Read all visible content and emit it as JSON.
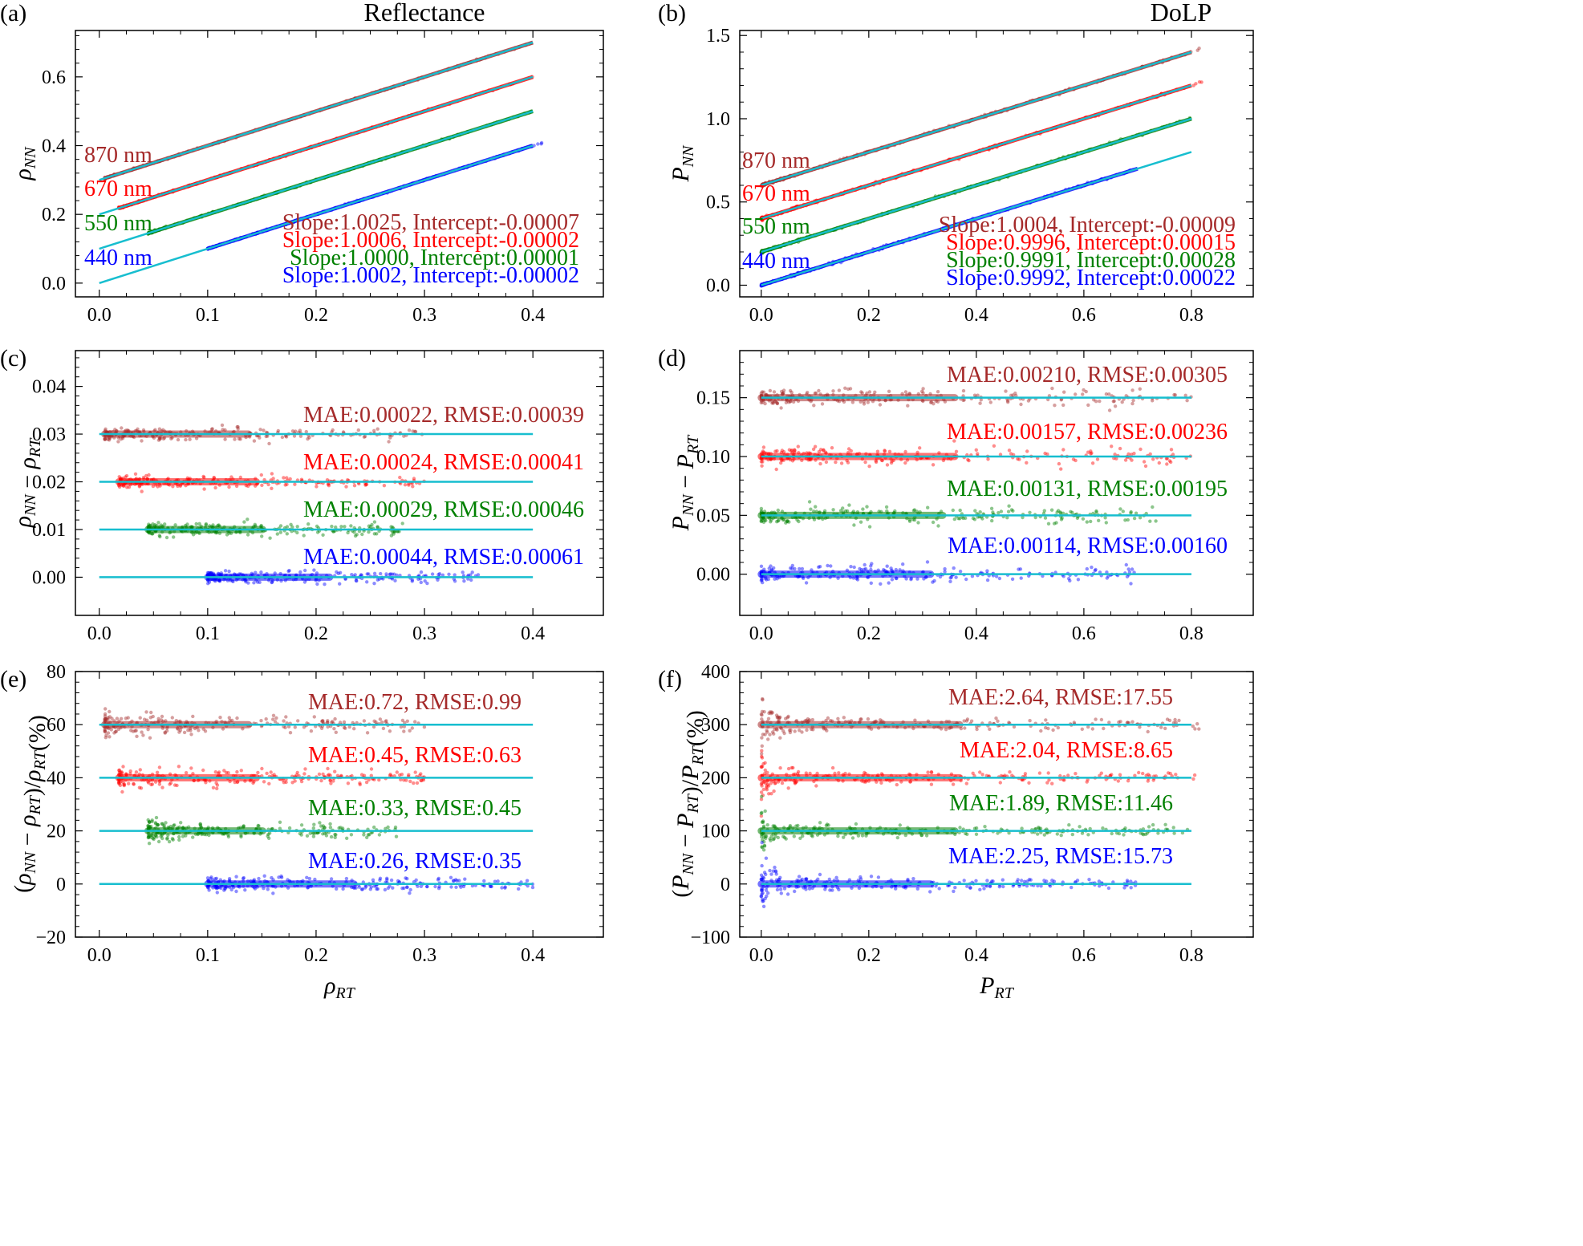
{
  "figure": {
    "column_titles": [
      "Reflectance",
      "DoLP"
    ]
  },
  "series_style": {
    "colors": {
      "870": "#a52a2a",
      "670": "#ff0000",
      "550": "#008000",
      "440": "#0000ff"
    },
    "fit_line_color": "#17becf"
  },
  "chart_data": [
    {
      "panel": "(a)",
      "type": "scatter",
      "title": "Reflectance",
      "xlabel": "",
      "ylabel": "ρ_NN",
      "xlim": [
        -0.022,
        0.465
      ],
      "ylim": [
        -0.04,
        0.735
      ],
      "xticks": [
        0.0,
        0.1,
        0.2,
        0.3,
        0.4
      ],
      "xticklabels": [
        "0.0",
        "0.1",
        "0.2",
        "0.3",
        "0.4"
      ],
      "yticks": [
        0.0,
        0.2,
        0.4,
        0.6
      ],
      "yticklabels": [
        "0.0",
        "0.2",
        "0.4",
        "0.6"
      ],
      "series": [
        {
          "name": "870 nm",
          "offset": 0.3,
          "x_start": 0.005,
          "x_end": 0.4,
          "line_start": 0.0,
          "line_end": 0.4,
          "slope": 1.0025,
          "intercept": -7e-05
        },
        {
          "name": "670 nm",
          "offset": 0.2,
          "x_start": 0.018,
          "x_end": 0.4,
          "line_start": 0.0,
          "line_end": 0.4,
          "slope": 1.0006,
          "intercept": -2e-05
        },
        {
          "name": "550 nm",
          "offset": 0.1,
          "x_start": 0.045,
          "x_end": 0.4,
          "line_start": 0.0,
          "line_end": 0.4,
          "slope": 1.0,
          "intercept": 1e-05
        },
        {
          "name": "440 nm",
          "offset": 0.0,
          "x_start": 0.1,
          "x_end": 0.41,
          "line_start": 0.0,
          "line_end": 0.4,
          "slope": 1.0002,
          "intercept": -2e-05
        }
      ],
      "series_labels": [
        "870 nm",
        "670 nm",
        "550 nm",
        "440 nm"
      ],
      "annotations": [
        "Slope:1.0025, Intercept:-0.00007",
        "Slope:1.0006, Intercept:-0.00002",
        "Slope:1.0000, Intercept:0.00001",
        "Slope:1.0002, Intercept:-0.00002"
      ]
    },
    {
      "panel": "(b)",
      "type": "scatter",
      "title": "DoLP",
      "xlabel": "",
      "ylabel": "P_NN",
      "xlim": [
        -0.04,
        0.915
      ],
      "ylim": [
        -0.07,
        1.53
      ],
      "xticks": [
        0.0,
        0.2,
        0.4,
        0.6,
        0.8
      ],
      "xticklabels": [
        "0.0",
        "0.2",
        "0.4",
        "0.6",
        "0.8"
      ],
      "yticks": [
        0.0,
        0.5,
        1.0,
        1.5
      ],
      "yticklabels": [
        "0.0",
        "0.5",
        "1.0",
        "1.5"
      ],
      "series": [
        {
          "name": "870 nm",
          "offset": 0.6,
          "x_start": 0.0,
          "x_end": 0.82,
          "line_start": 0.0,
          "line_end": 0.8,
          "slope": 1.0004,
          "intercept": -9e-05
        },
        {
          "name": "670 nm",
          "offset": 0.4,
          "x_start": 0.0,
          "x_end": 0.82,
          "line_start": 0.0,
          "line_end": 0.8,
          "slope": 0.9996,
          "intercept": 0.00015
        },
        {
          "name": "550 nm",
          "offset": 0.2,
          "x_start": 0.0,
          "x_end": 0.8,
          "line_start": 0.0,
          "line_end": 0.8,
          "slope": 0.9991,
          "intercept": 0.00028
        },
        {
          "name": "440 nm",
          "offset": 0.0,
          "x_start": 0.0,
          "x_end": 0.7,
          "line_start": 0.0,
          "line_end": 0.8,
          "slope": 0.9992,
          "intercept": 0.00022
        }
      ],
      "series_labels": [
        "870 nm",
        "670 nm",
        "550 nm",
        "440 nm"
      ],
      "annotations": [
        "Slope:1.0004, Intercept:-0.00009",
        "Slope:0.9996, Intercept:0.00015",
        "Slope:0.9991, Intercept:0.00028",
        "Slope:0.9992, Intercept:0.00022"
      ]
    },
    {
      "panel": "(c)",
      "type": "scatter",
      "xlabel": "",
      "ylabel": "ρ_NN − ρ_RT",
      "xlim": [
        -0.022,
        0.465
      ],
      "ylim": [
        -0.008,
        0.0475
      ],
      "xticks": [
        0.0,
        0.1,
        0.2,
        0.3,
        0.4
      ],
      "xticklabels": [
        "0.0",
        "0.1",
        "0.2",
        "0.3",
        "0.4"
      ],
      "yticks": [
        0.0,
        0.01,
        0.02,
        0.03,
        0.04
      ],
      "yticklabels": [
        "0.00",
        "0.01",
        "0.02",
        "0.03",
        "0.04"
      ],
      "series": [
        {
          "name": "870 nm",
          "offset": 0.03,
          "x_start": 0.005,
          "x_end": 0.3,
          "line_start": 0.0,
          "line_end": 0.4
        },
        {
          "name": "670 nm",
          "offset": 0.02,
          "x_start": 0.018,
          "x_end": 0.3,
          "line_start": 0.0,
          "line_end": 0.4
        },
        {
          "name": "550 nm",
          "offset": 0.01,
          "x_start": 0.045,
          "x_end": 0.28,
          "line_start": 0.0,
          "line_end": 0.4
        },
        {
          "name": "440 nm",
          "offset": 0.0,
          "x_start": 0.1,
          "x_end": 0.35,
          "line_start": 0.0,
          "line_end": 0.4
        }
      ],
      "annotations": [
        "MAE:0.00022, RMSE:0.00039",
        "MAE:0.00024, RMSE:0.00041",
        "MAE:0.00029, RMSE:0.00046",
        "MAE:0.00044, RMSE:0.00061"
      ]
    },
    {
      "panel": "(d)",
      "type": "scatter",
      "xlabel": "",
      "ylabel": "P_NN − P_RT",
      "xlim": [
        -0.04,
        0.915
      ],
      "ylim": [
        -0.035,
        0.19
      ],
      "xticks": [
        0.0,
        0.2,
        0.4,
        0.6,
        0.8
      ],
      "xticklabels": [
        "0.0",
        "0.2",
        "0.4",
        "0.6",
        "0.8"
      ],
      "yticks": [
        0.0,
        0.05,
        0.1,
        0.15
      ],
      "yticklabels": [
        "0.00",
        "0.05",
        "0.10",
        "0.15"
      ],
      "series": [
        {
          "name": "870 nm",
          "offset": 0.15,
          "x_start": 0.0,
          "x_end": 0.8,
          "line_start": 0.0,
          "line_end": 0.8
        },
        {
          "name": "670 nm",
          "offset": 0.1,
          "x_start": 0.0,
          "x_end": 0.8,
          "line_start": 0.0,
          "line_end": 0.8
        },
        {
          "name": "550 nm",
          "offset": 0.05,
          "x_start": 0.0,
          "x_end": 0.75,
          "line_start": 0.0,
          "line_end": 0.8
        },
        {
          "name": "440 nm",
          "offset": 0.0,
          "x_start": 0.0,
          "x_end": 0.7,
          "line_start": 0.0,
          "line_end": 0.8
        }
      ],
      "annotations": [
        "MAE:0.00210, RMSE:0.00305",
        "MAE:0.00157, RMSE:0.00236",
        "MAE:0.00131, RMSE:0.00195",
        "MAE:0.00114, RMSE:0.00160"
      ]
    },
    {
      "panel": "(e)",
      "type": "scatter",
      "xlabel": "ρ_RT",
      "ylabel": "(ρ_NN − ρ_RT)/ρ_RT(%)",
      "xlim": [
        -0.022,
        0.465
      ],
      "ylim": [
        -20,
        80
      ],
      "xticks": [
        0.0,
        0.1,
        0.2,
        0.3,
        0.4
      ],
      "xticklabels": [
        "0.0",
        "0.1",
        "0.2",
        "0.3",
        "0.4"
      ],
      "yticks": [
        -20,
        0,
        20,
        40,
        60,
        80
      ],
      "yticklabels": [
        "−20",
        "0",
        "20",
        "40",
        "60",
        "80"
      ],
      "series": [
        {
          "name": "870 nm",
          "offset": 60,
          "x_start": 0.005,
          "x_end": 0.3,
          "line_start": 0.0,
          "line_end": 0.4
        },
        {
          "name": "670 nm",
          "offset": 40,
          "x_start": 0.018,
          "x_end": 0.3,
          "line_start": 0.0,
          "line_end": 0.4
        },
        {
          "name": "550 nm",
          "offset": 20,
          "x_start": 0.045,
          "x_end": 0.28,
          "line_start": 0.0,
          "line_end": 0.4
        },
        {
          "name": "440 nm",
          "offset": 0,
          "x_start": 0.1,
          "x_end": 0.4,
          "line_start": 0.0,
          "line_end": 0.4
        }
      ],
      "annotations": [
        "MAE:0.72, RMSE:0.99",
        "MAE:0.45, RMSE:0.63",
        "MAE:0.33, RMSE:0.45",
        "MAE:0.26, RMSE:0.35"
      ]
    },
    {
      "panel": "(f)",
      "type": "scatter",
      "xlabel": "P_RT",
      "ylabel": "(P_NN − P_RT)/P_RT(%)",
      "xlim": [
        -0.04,
        0.915
      ],
      "ylim": [
        -100,
        400
      ],
      "xticks": [
        0.0,
        0.2,
        0.4,
        0.6,
        0.8
      ],
      "xticklabels": [
        "0.0",
        "0.2",
        "0.4",
        "0.6",
        "0.8"
      ],
      "yticks": [
        -100,
        0,
        100,
        200,
        300,
        400
      ],
      "yticklabels": [
        "−100",
        "0",
        "100",
        "200",
        "300",
        "400"
      ],
      "series": [
        {
          "name": "870 nm",
          "offset": 300,
          "x_start": 0.0,
          "x_end": 0.82,
          "line_start": 0.0,
          "line_end": 0.8
        },
        {
          "name": "670 nm",
          "offset": 200,
          "x_start": 0.0,
          "x_end": 0.82,
          "line_start": 0.0,
          "line_end": 0.8
        },
        {
          "name": "550 nm",
          "offset": 100,
          "x_start": 0.0,
          "x_end": 0.8,
          "line_start": 0.0,
          "line_end": 0.8
        },
        {
          "name": "440 nm",
          "offset": 0,
          "x_start": 0.0,
          "x_end": 0.7,
          "line_start": 0.0,
          "line_end": 0.8
        }
      ],
      "annotations": [
        "MAE:2.64, RMSE:17.55",
        "MAE:2.04, RMSE:8.65",
        "MAE:1.89, RMSE:11.46",
        "MAE:2.25, RMSE:15.73"
      ]
    }
  ]
}
